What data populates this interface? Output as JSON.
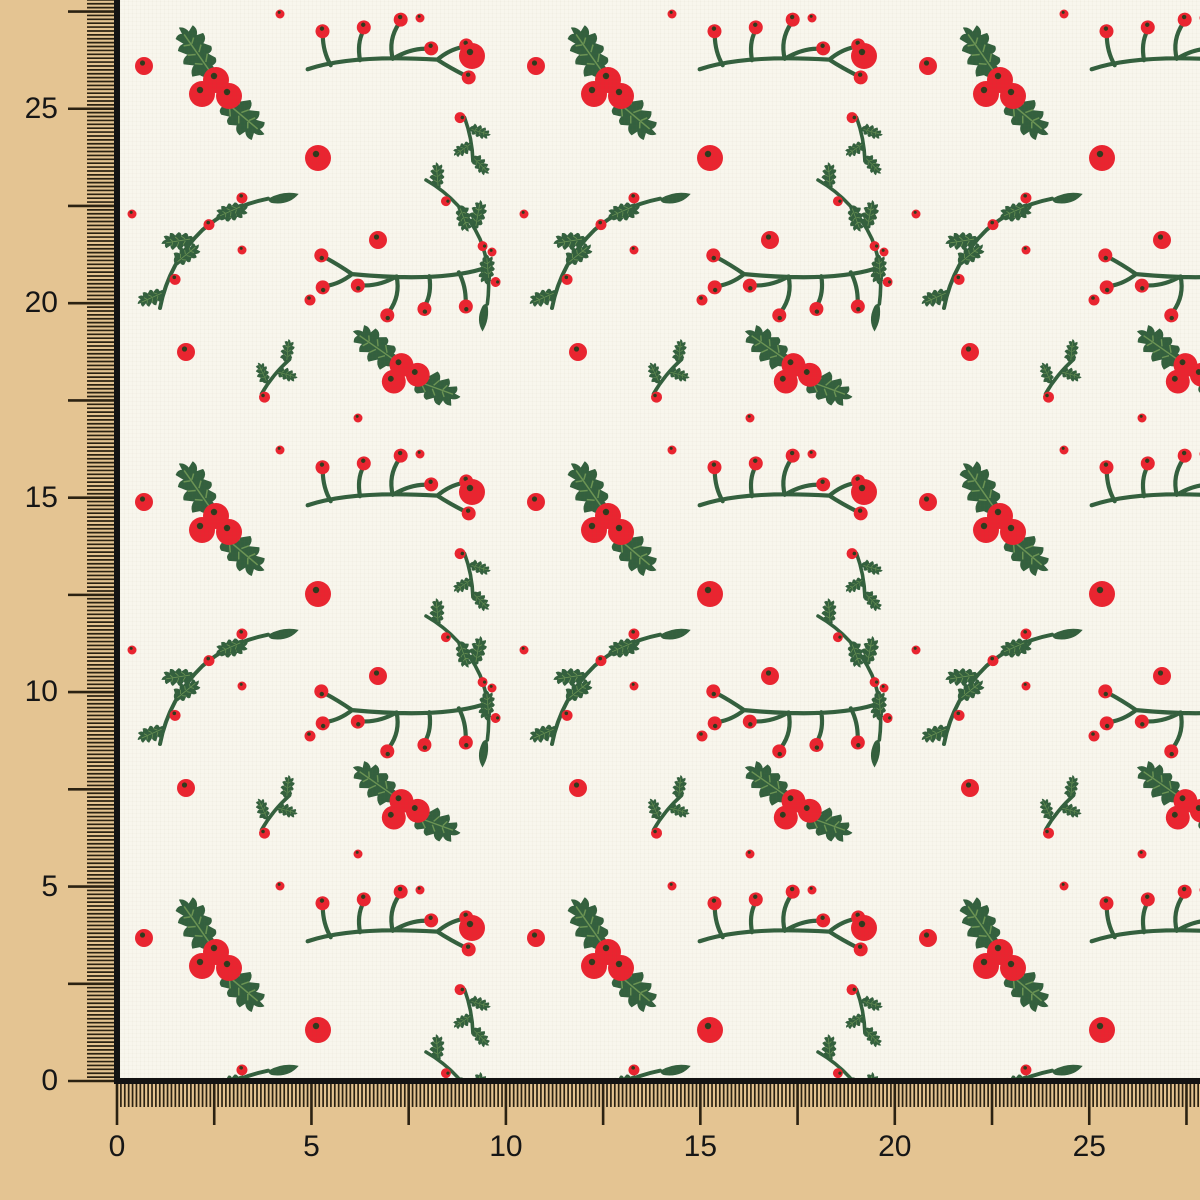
{
  "image": {
    "type": "fabric swatch product photo",
    "subject": "White cotton fabric printed with Christmas holly leaves, berry sprigs and scattered red berries, shown against a centimeter ruler along the left and bottom edges"
  },
  "rulers": {
    "unit": "cm",
    "left_labels": [
      {
        "text": "25",
        "cm": 25
      },
      {
        "text": "20",
        "cm": 20
      },
      {
        "text": "15",
        "cm": 15
      },
      {
        "text": "10",
        "cm": 10
      },
      {
        "text": "5",
        "cm": 5
      },
      {
        "text": "0",
        "cm": 0
      }
    ],
    "bottom_labels": [
      {
        "text": "0",
        "cm": 0
      },
      {
        "text": "5",
        "cm": 5
      },
      {
        "text": "10",
        "cm": 10
      },
      {
        "text": "15",
        "cm": 15
      },
      {
        "text": "20",
        "cm": 20
      },
      {
        "text": "25",
        "cm": 25
      }
    ]
  },
  "colors": {
    "ruler_bg": "#e4c492",
    "tick": "#2b2212",
    "label": "#161616",
    "fabric": "#f8f6ed",
    "edge": "#131313",
    "berry": "#ea2430",
    "speck": "#2f3a1d",
    "leaf": "#33603e",
    "vein": "#749e58"
  },
  "pattern_motifs": [
    "holly-leaf-cluster-with-three-berries",
    "branched-berry-sprig",
    "curved-holly-leaf-swag",
    "small-leaf-twig",
    "scattered-red-berries"
  ]
}
